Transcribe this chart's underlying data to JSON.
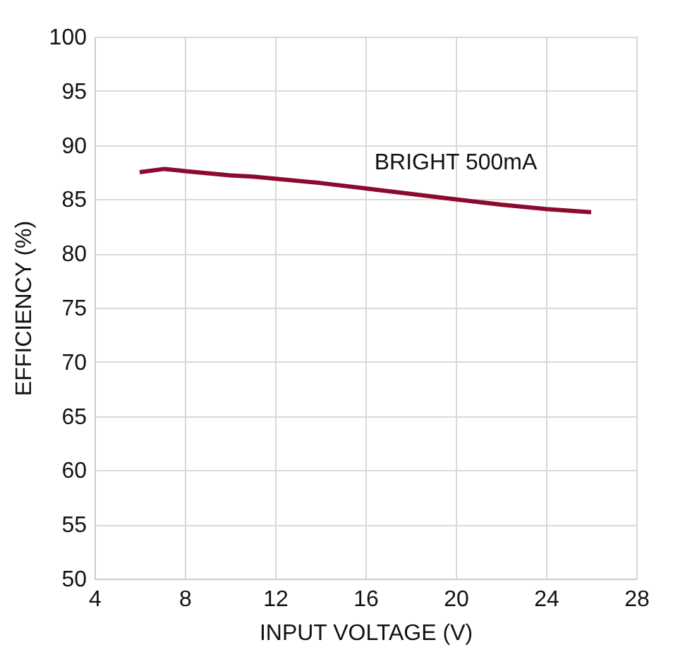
{
  "chart_data": {
    "type": "line",
    "xlabel": "INPUT VOLTAGE (V)",
    "ylabel": "EFFICIENCY (%)",
    "x": [
      6,
      7.1,
      8,
      10,
      11,
      12,
      14,
      16,
      18,
      20,
      22,
      24,
      26
    ],
    "series": [
      {
        "name": "BRIGHT 500mA",
        "color": "#8b0a2e",
        "values": [
          87.5,
          87.8,
          87.6,
          87.2,
          87.1,
          86.9,
          86.5,
          86.0,
          85.5,
          85.0,
          84.5,
          84.1,
          83.8
        ]
      }
    ],
    "xlim": [
      4,
      28
    ],
    "xticks": [
      4,
      8,
      12,
      16,
      20,
      24,
      28
    ],
    "ylim": [
      50,
      100
    ],
    "yticks": [
      50,
      55,
      60,
      65,
      70,
      75,
      80,
      85,
      90,
      95,
      100
    ],
    "grid": true,
    "line_style": "solid",
    "marker": "none"
  }
}
